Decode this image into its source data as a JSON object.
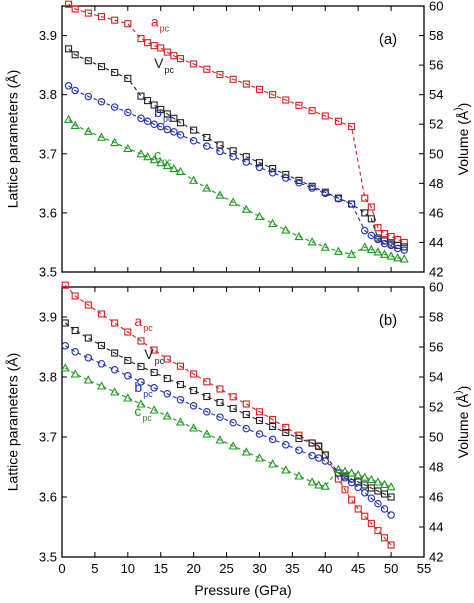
{
  "colors": {
    "a": "#d62020",
    "V": "#222222",
    "b": "#1f2fb8",
    "c": "#1f9a1f"
  },
  "chart_data": [
    {
      "type": "scatter",
      "panel_label": "(a)",
      "xlim": [
        0,
        55
      ],
      "ylim": [
        3.5,
        3.95
      ],
      "y2lim": [
        42,
        60
      ],
      "xlabel": "Pressure (GPa)",
      "ylabel": "Lattice parameters (Å)",
      "y2label": "Volume (Å3)",
      "x_ticks": [
        "0",
        "5",
        "10",
        "15",
        "20",
        "25",
        "30",
        "35",
        "40",
        "45",
        "50",
        "55"
      ],
      "y_ticks": [
        "3.5",
        "3.6",
        "3.7",
        "3.8",
        "3.9"
      ],
      "y2_ticks": [
        "42",
        "44",
        "46",
        "48",
        "50",
        "52",
        "54",
        "56",
        "58",
        "60"
      ],
      "series": [
        {
          "key": "a",
          "name": "a",
          "sub": "pc",
          "color": "#d62020",
          "marker": "square",
          "axis": "left",
          "x": [
            1,
            2,
            4,
            6,
            8,
            10,
            12,
            13,
            14,
            15,
            16,
            17,
            18,
            20,
            22,
            24,
            26,
            28,
            30,
            32,
            34,
            36,
            38,
            40,
            42,
            44,
            46,
            47,
            48,
            49,
            50,
            51,
            52
          ],
          "y": [
            3.953,
            3.945,
            3.938,
            3.932,
            3.926,
            3.92,
            3.895,
            3.888,
            3.883,
            3.879,
            3.872,
            3.866,
            3.861,
            3.852,
            3.843,
            3.834,
            3.826,
            3.818,
            3.809,
            3.8,
            3.791,
            3.782,
            3.773,
            3.764,
            3.755,
            3.746,
            3.625,
            3.61,
            3.575,
            3.565,
            3.56,
            3.555,
            3.55
          ],
          "label_x": 13.5,
          "label_y": 3.915
        },
        {
          "key": "V",
          "name": "V",
          "sub": "pc",
          "color": "#222222",
          "marker": "square",
          "axis": "right",
          "x": [
            1,
            2,
            4,
            6,
            8,
            10,
            12,
            13,
            14,
            15,
            16,
            17,
            18,
            20,
            22,
            24,
            26,
            28,
            30,
            32,
            34,
            36,
            38,
            40,
            42,
            44,
            46,
            47,
            48,
            49,
            50,
            51,
            52
          ],
          "y": [
            57.1,
            56.7,
            56.3,
            55.9,
            55.5,
            55.1,
            53.9,
            53.6,
            53.3,
            53.0,
            52.7,
            52.4,
            52.1,
            51.6,
            51.1,
            50.6,
            50.2,
            49.8,
            49.4,
            49.0,
            48.6,
            48.2,
            47.8,
            47.4,
            47.0,
            46.6,
            46.0,
            45.6,
            44.3,
            44.1,
            43.9,
            43.8,
            43.7
          ],
          "label_x": 14,
          "label_y": 3.845
        },
        {
          "key": "b",
          "name": "b",
          "sub": "pc",
          "color": "#1f2fb8",
          "marker": "circle",
          "axis": "left",
          "x": [
            1,
            2,
            4,
            6,
            8,
            10,
            12,
            13,
            14,
            15,
            16,
            17,
            18,
            20,
            22,
            24,
            26,
            28,
            30,
            32,
            34,
            36,
            38,
            40,
            42,
            44,
            46,
            47,
            48,
            49,
            50,
            51,
            52
          ],
          "y": [
            3.815,
            3.807,
            3.797,
            3.788,
            3.779,
            3.77,
            3.76,
            3.755,
            3.75,
            3.746,
            3.741,
            3.737,
            3.732,
            3.722,
            3.713,
            3.704,
            3.695,
            3.686,
            3.677,
            3.668,
            3.659,
            3.651,
            3.642,
            3.633,
            3.624,
            3.615,
            3.57,
            3.562,
            3.555,
            3.548,
            3.545,
            3.54,
            3.537
          ],
          "label_x": 14,
          "label_y": 3.762
        },
        {
          "key": "c",
          "name": "c",
          "sub": "pc",
          "color": "#1f9a1f",
          "marker": "triangle",
          "axis": "left",
          "x": [
            1,
            2,
            4,
            6,
            8,
            10,
            12,
            13,
            14,
            15,
            16,
            17,
            18,
            20,
            22,
            24,
            26,
            28,
            30,
            32,
            34,
            36,
            38,
            40,
            42,
            44,
            46,
            47,
            48,
            49,
            50,
            51,
            52
          ],
          "y": [
            3.758,
            3.748,
            3.738,
            3.728,
            3.719,
            3.709,
            3.7,
            3.695,
            3.69,
            3.685,
            3.68,
            3.675,
            3.67,
            3.655,
            3.642,
            3.63,
            3.618,
            3.606,
            3.594,
            3.582,
            3.571,
            3.56,
            3.551,
            3.542,
            3.535,
            3.53,
            3.542,
            3.538,
            3.534,
            3.53,
            3.527,
            3.524,
            3.522
          ],
          "label_x": 14,
          "label_y": 3.69
        }
      ]
    },
    {
      "type": "scatter",
      "panel_label": "(b)",
      "xlim": [
        0,
        55
      ],
      "ylim": [
        3.5,
        3.95
      ],
      "y2lim": [
        42,
        60
      ],
      "xlabel": "Pressure (GPa)",
      "ylabel": "Lattice parameters (Å)",
      "y2label": "Volume (Å3)",
      "x_ticks": [
        "0",
        "5",
        "10",
        "15",
        "20",
        "25",
        "30",
        "35",
        "40",
        "45",
        "50",
        "55"
      ],
      "y_ticks": [
        "3.5",
        "3.6",
        "3.7",
        "3.8",
        "3.9"
      ],
      "y2_ticks": [
        "42",
        "44",
        "46",
        "48",
        "50",
        "52",
        "54",
        "56",
        "58",
        "60"
      ],
      "series": [
        {
          "key": "a",
          "name": "a",
          "sub": "pc",
          "color": "#d62020",
          "marker": "square",
          "axis": "left",
          "x": [
            0.5,
            2,
            4,
            6,
            8,
            10,
            12,
            14,
            16,
            18,
            20,
            22,
            24,
            26,
            28,
            30,
            32,
            34,
            36,
            38,
            39,
            40,
            42,
            43,
            44,
            45,
            46,
            47,
            48,
            49,
            50
          ],
          "y": [
            3.953,
            3.935,
            3.92,
            3.905,
            3.89,
            3.875,
            3.86,
            3.845,
            3.83,
            3.818,
            3.805,
            3.792,
            3.78,
            3.767,
            3.755,
            3.742,
            3.729,
            3.716,
            3.703,
            3.69,
            3.684,
            3.67,
            3.63,
            3.612,
            3.595,
            3.58,
            3.568,
            3.556,
            3.544,
            3.532,
            3.52
          ],
          "label_x": 11,
          "label_y": 3.885
        },
        {
          "key": "V",
          "name": "V",
          "sub": "pc",
          "color": "#222222",
          "marker": "square",
          "axis": "right",
          "x": [
            0.5,
            2,
            4,
            6,
            8,
            10,
            12,
            14,
            16,
            18,
            20,
            22,
            24,
            26,
            28,
            30,
            32,
            34,
            36,
            38,
            39,
            40,
            42,
            43,
            44,
            45,
            46,
            47,
            48,
            49,
            50
          ],
          "y": [
            57.6,
            57.1,
            56.6,
            56.1,
            55.6,
            55.1,
            54.7,
            54.3,
            53.9,
            53.5,
            53.1,
            52.7,
            52.3,
            51.9,
            51.5,
            51.1,
            50.7,
            50.3,
            49.9,
            49.6,
            49.4,
            48.8,
            47.6,
            47.4,
            47.2,
            47.0,
            46.8,
            46.6,
            46.4,
            46.2,
            46.0
          ],
          "label_x": 12.5,
          "label_y": 3.83
        },
        {
          "key": "b",
          "name": "b",
          "sub": "pc",
          "color": "#1f2fb8",
          "marker": "circle",
          "axis": "left",
          "x": [
            0.5,
            2,
            4,
            6,
            8,
            10,
            12,
            14,
            16,
            18,
            20,
            22,
            24,
            26,
            28,
            30,
            32,
            34,
            36,
            38,
            39,
            40,
            42,
            43,
            44,
            45,
            46,
            47,
            48,
            49,
            50
          ],
          "y": [
            3.852,
            3.842,
            3.832,
            3.822,
            3.812,
            3.802,
            3.792,
            3.782,
            3.772,
            3.762,
            3.752,
            3.742,
            3.733,
            3.724,
            3.714,
            3.705,
            3.696,
            3.687,
            3.678,
            3.669,
            3.665,
            3.66,
            3.64,
            3.632,
            3.624,
            3.616,
            3.607,
            3.598,
            3.589,
            3.58,
            3.57
          ],
          "label_x": 11,
          "label_y": 3.775
        },
        {
          "key": "c",
          "name": "c",
          "sub": "pc",
          "color": "#1f9a1f",
          "marker": "triangle",
          "axis": "left",
          "x": [
            0.5,
            2,
            4,
            6,
            8,
            10,
            12,
            14,
            16,
            18,
            20,
            22,
            24,
            26,
            28,
            30,
            32,
            34,
            36,
            38,
            39,
            40,
            42,
            43,
            44,
            45,
            46,
            47,
            48,
            49,
            50
          ],
          "y": [
            3.815,
            3.805,
            3.795,
            3.785,
            3.775,
            3.765,
            3.755,
            3.745,
            3.735,
            3.725,
            3.715,
            3.705,
            3.695,
            3.685,
            3.675,
            3.665,
            3.655,
            3.645,
            3.635,
            3.625,
            3.62,
            3.618,
            3.646,
            3.643,
            3.64,
            3.637,
            3.633,
            3.629,
            3.625,
            3.621,
            3.617
          ],
          "label_x": 11,
          "label_y": 3.735
        }
      ]
    }
  ]
}
